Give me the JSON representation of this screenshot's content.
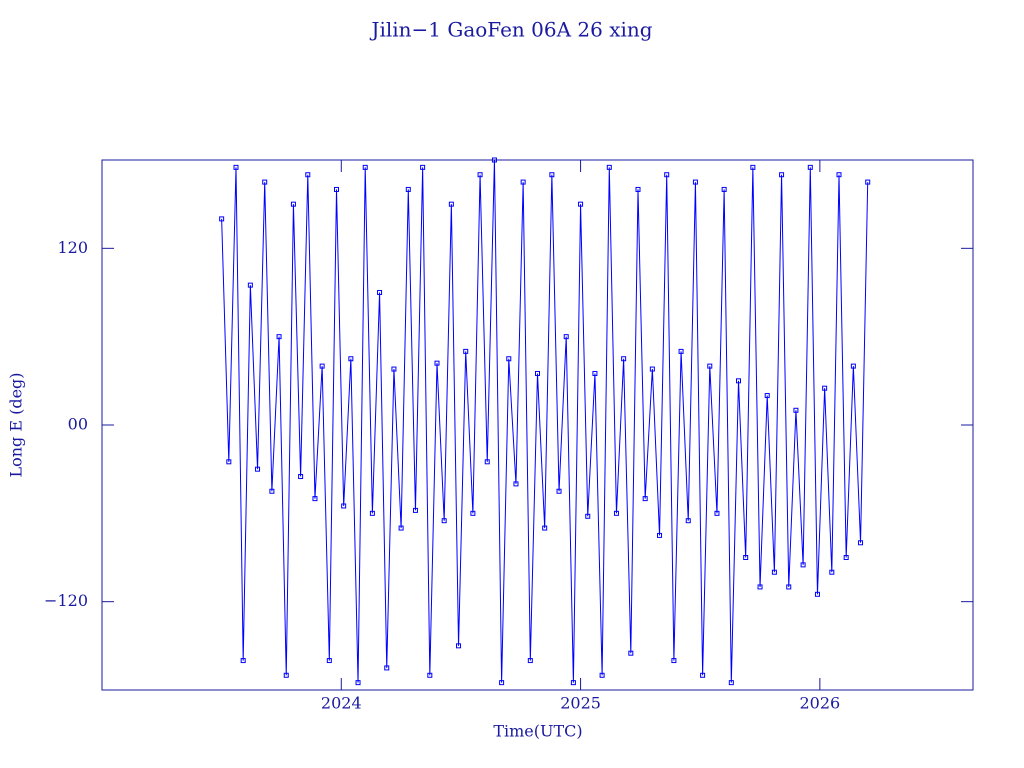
{
  "chart_data": {
    "type": "line",
    "title": "Jilin−1 GaoFen 06A 26 xing",
    "x_label": "Time(UTC)",
    "y_label": "Long E (deg)",
    "x": [
      2023.5,
      2023.53,
      2023.56,
      2023.59,
      2023.62,
      2023.65,
      2023.68,
      2023.71,
      2023.74,
      2023.77,
      2023.8,
      2023.83,
      2023.86,
      2023.89,
      2023.92,
      2023.95,
      2023.98,
      2024.01,
      2024.04,
      2024.07,
      2024.1,
      2024.13,
      2024.16,
      2024.19,
      2024.22,
      2024.25,
      2024.28,
      2024.31,
      2024.34,
      2024.37,
      2024.4,
      2024.43,
      2024.46,
      2024.49,
      2024.52,
      2024.55,
      2024.58,
      2024.61,
      2024.64,
      2024.67,
      2024.7,
      2024.73,
      2024.76,
      2024.79,
      2024.82,
      2024.85,
      2024.88,
      2024.91,
      2024.94,
      2024.97,
      2025.0,
      2025.03,
      2025.06,
      2025.09,
      2025.12,
      2025.15,
      2025.18,
      2025.21,
      2025.24,
      2025.27,
      2025.3,
      2025.33,
      2025.36,
      2025.39,
      2025.42,
      2025.45,
      2025.48,
      2025.51,
      2025.54,
      2025.57,
      2025.6,
      2025.63,
      2025.66,
      2025.69,
      2025.72,
      2025.75,
      2025.78,
      2025.81,
      2025.84,
      2025.87,
      2025.9,
      2025.93,
      2025.96,
      2025.99,
      2026.02,
      2026.05,
      2026.08,
      2026.11,
      2026.14,
      2026.17,
      2026.2
    ],
    "values": [
      140,
      -25,
      175,
      -160,
      95,
      -30,
      165,
      -45,
      60,
      -170,
      150,
      -35,
      170,
      -50,
      40,
      -160,
      160,
      -55,
      45,
      -175,
      175,
      -60,
      90,
      -165,
      38,
      -70,
      160,
      -58,
      175,
      -170,
      42,
      -65,
      150,
      -150,
      50,
      -60,
      170,
      -25,
      180,
      -175,
      45,
      -40,
      165,
      -160,
      35,
      -70,
      170,
      -45,
      60,
      -175,
      150,
      -62,
      35,
      -170,
      175,
      -60,
      45,
      -155,
      160,
      -50,
      38,
      -75,
      170,
      -160,
      50,
      -65,
      165,
      -170,
      40,
      -60,
      160,
      -175,
      30,
      -90,
      175,
      -110,
      20,
      -100,
      170,
      -110,
      10,
      -95,
      175,
      -115,
      25,
      -100,
      170,
      -90,
      40,
      -80,
      165
    ],
    "color": "#0000ff",
    "xlim": [
      2023.0,
      2026.64
    ],
    "xticks": [
      2024,
      2025,
      2026
    ],
    "ylim": [
      -180,
      180
    ],
    "yticks": [
      {
        "value": -120,
        "label": "−120"
      },
      {
        "value": 0,
        "label": "00"
      },
      {
        "value": 120,
        "label": "120"
      }
    ]
  }
}
